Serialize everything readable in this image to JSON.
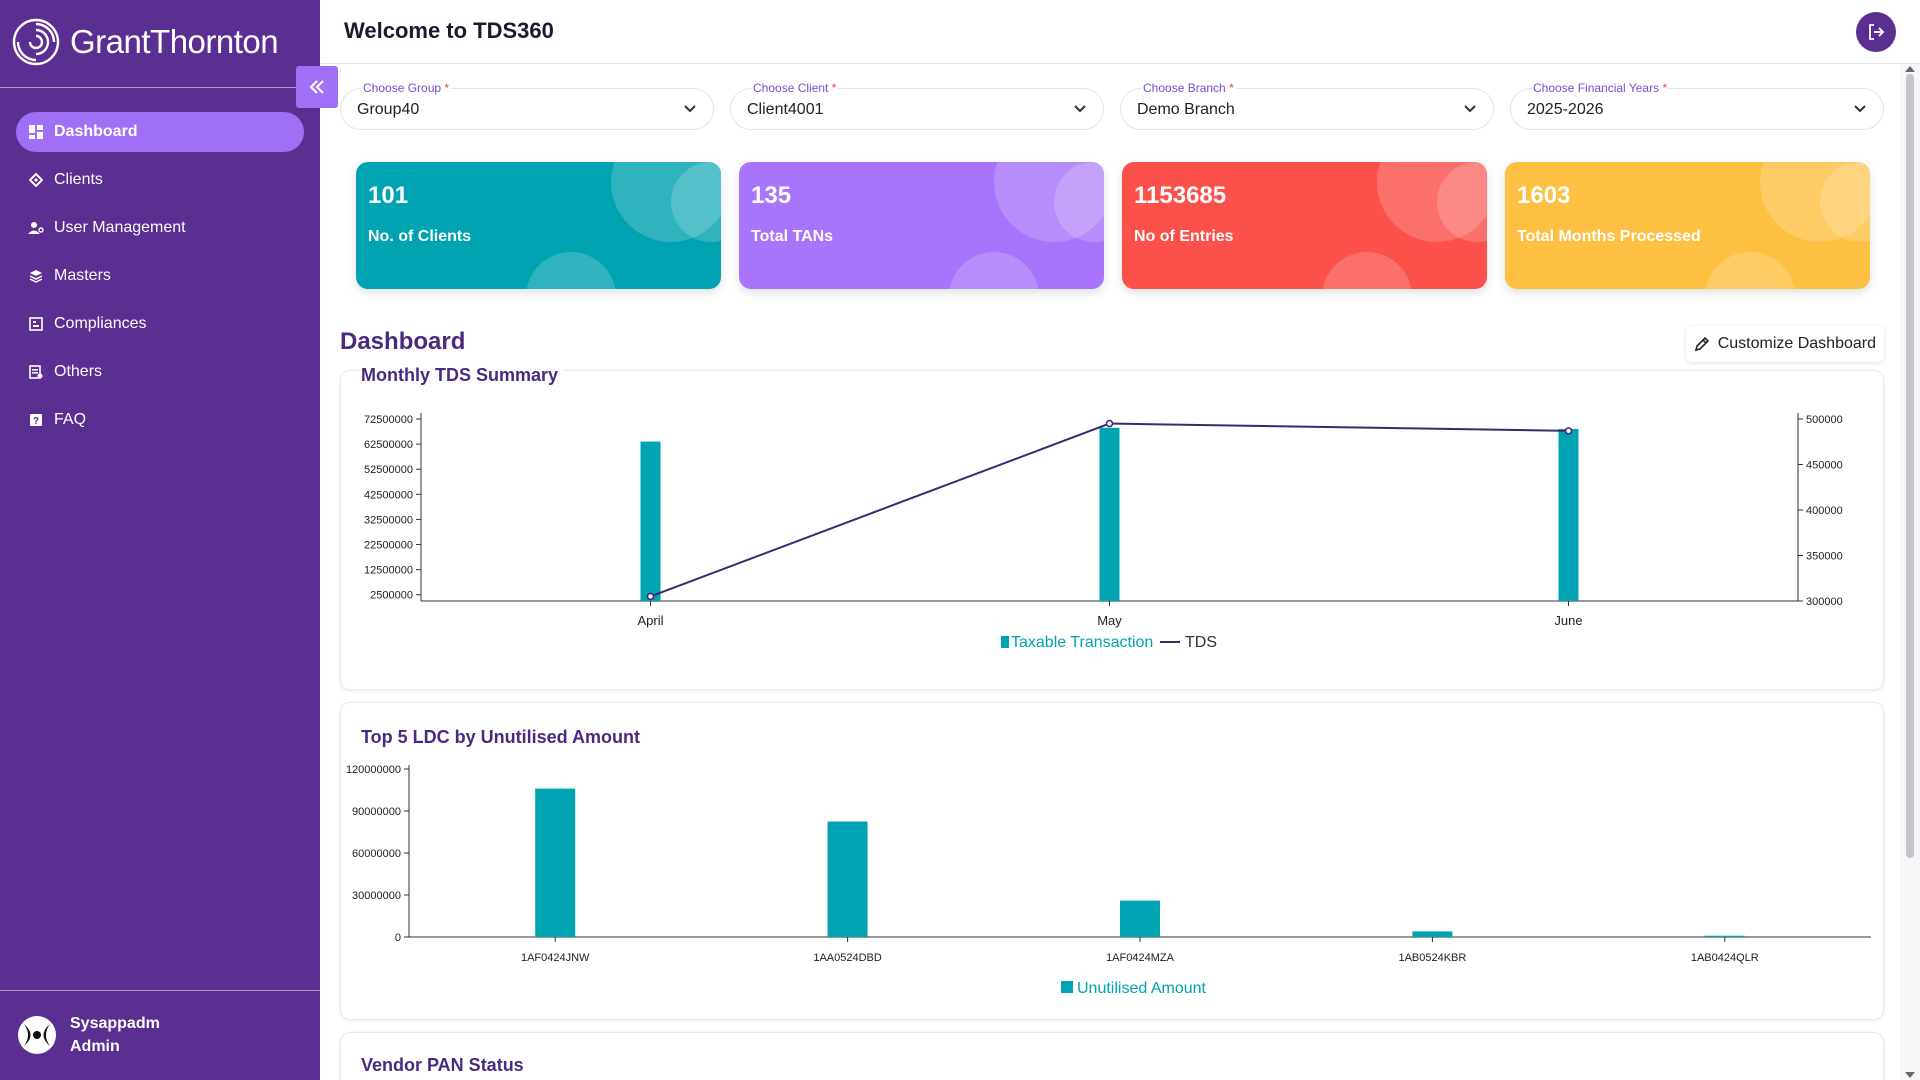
{
  "brand": {
    "name": "GrantThornton"
  },
  "sidebar": {
    "items": [
      {
        "label": "Dashboard",
        "icon": "dashboard-icon",
        "active": true
      },
      {
        "label": "Clients",
        "icon": "clients-icon"
      },
      {
        "label": "User Management",
        "icon": "user-management-icon"
      },
      {
        "label": "Masters",
        "icon": "layers-icon"
      },
      {
        "label": "Compliances",
        "icon": "compliances-icon"
      },
      {
        "label": "Others",
        "icon": "others-icon"
      },
      {
        "label": "FAQ",
        "icon": "faq-icon"
      }
    ],
    "user": {
      "name": "Sysappadm",
      "role": "Admin"
    }
  },
  "header": {
    "title": "Welcome to TDS360"
  },
  "filters": [
    {
      "label": "Choose Group",
      "value": "Group40"
    },
    {
      "label": "Choose Client",
      "value": "Client4001"
    },
    {
      "label": "Choose Branch",
      "value": "Demo Branch"
    },
    {
      "label": "Choose Financial Years",
      "value": "2025-2026"
    }
  ],
  "required_mark": "*",
  "stats": [
    {
      "value": "101",
      "label": "No. of Clients",
      "color": "#00a3b1"
    },
    {
      "value": "135",
      "label": "Total TANs",
      "color": "#a874fb"
    },
    {
      "value": "1153685",
      "label": "No of Entries",
      "color": "#fc514b"
    },
    {
      "value": "1603",
      "label": "Total Months Processed",
      "color": "#fec043"
    }
  ],
  "dashboard": {
    "title": "Dashboard",
    "customize_label": "Customize Dashboard"
  },
  "chart_data": [
    {
      "type": "bar",
      "title": "Monthly TDS Summary",
      "categories": [
        "April",
        "May",
        "June"
      ],
      "series": [
        {
          "name": "Taxable Transaction",
          "kind": "bar",
          "axis": "left",
          "values": [
            63500000,
            69000000,
            68500000
          ],
          "color": "#00a3b1"
        },
        {
          "name": "TDS",
          "kind": "line",
          "axis": "right",
          "values": [
            305000,
            495000,
            487000
          ],
          "color": "#3b2a6e"
        }
      ],
      "y_left": {
        "ticks": [
          2500000,
          12500000,
          22500000,
          32500000,
          42500000,
          52500000,
          62500000,
          72500000
        ],
        "min": 0,
        "max": 72500000
      },
      "y_right": {
        "ticks": [
          300000,
          350000,
          400000,
          450000,
          500000
        ],
        "min": 300000,
        "max": 500000
      },
      "legend": "bottom"
    },
    {
      "type": "bar",
      "title": "Top 5 LDC by Unutilised Amount",
      "categories": [
        "1AF0424JNW",
        "1AA0524DBD",
        "1AF0424MZA",
        "1AB0524KBR",
        "1AB0424QLR"
      ],
      "series": [
        {
          "name": "Unutilised Amount",
          "values": [
            106000000,
            82500000,
            26000000,
            4000000,
            900000
          ],
          "color": "#00a3b1"
        }
      ],
      "y": {
        "ticks": [
          0,
          30000000,
          60000000,
          90000000,
          120000000
        ],
        "min": 0,
        "max": 120000000
      },
      "legend": "bottom"
    }
  ],
  "vendor_panel": {
    "title": "Vendor PAN Status"
  }
}
